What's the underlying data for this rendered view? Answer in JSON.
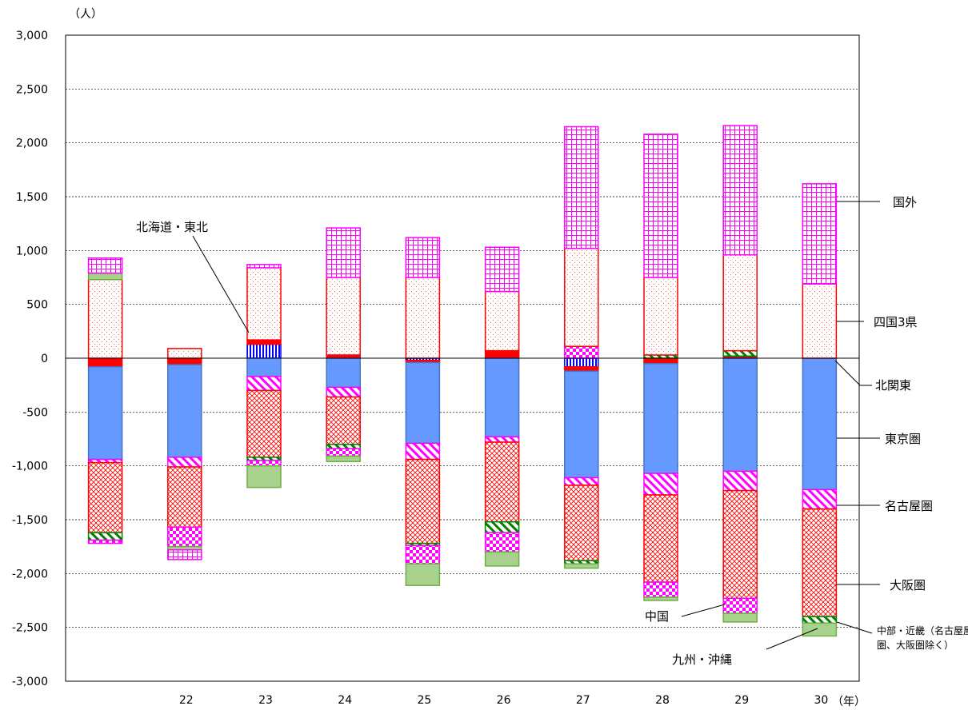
{
  "chart_data": {
    "type": "bar",
    "stacked": "diverging",
    "y_unit_label": "（人）",
    "x_unit_label": "（年）",
    "categories": [
      "",
      "22",
      "23",
      "24",
      "25",
      "26",
      "27",
      "28",
      "29",
      "30"
    ],
    "ylim": [
      -3000,
      3000
    ],
    "y_ticks": [
      3000,
      2500,
      2000,
      1500,
      1000,
      500,
      0,
      -500,
      -1000,
      -1500,
      -2000,
      -2500,
      -3000
    ],
    "y_tick_labels": [
      "3,000",
      "2,500",
      "2,000",
      "1,500",
      "1,000",
      "500",
      "0",
      "-500",
      "-1,000",
      "-1,500",
      "-2,000",
      "-2,500",
      "-3,000"
    ],
    "grid": "horizontal dashed",
    "stack_order": [
      "hokkaido_tohoku",
      "kita_kanto",
      "tokyo",
      "nagoya",
      "osaka",
      "chubu_kinki",
      "chugoku",
      "shikoku",
      "kyushu_okinawa",
      "kokugai"
    ],
    "series": [
      {
        "key": "hokkaido_tohoku",
        "name": "北海道・東北",
        "color": "#0000ff",
        "pattern": "vstripe",
        "values": [
          0,
          -10,
          130,
          0,
          -20,
          0,
          -80,
          0,
          0,
          0
        ]
      },
      {
        "key": "kita_kanto",
        "name": "北関東",
        "color": "#ff0000",
        "pattern": "solid",
        "values": [
          -80,
          -50,
          40,
          30,
          -20,
          70,
          -40,
          -50,
          20,
          0
        ]
      },
      {
        "key": "tokyo",
        "name": "東京圏",
        "color": "#6699ff",
        "pattern": "solid",
        "values": [
          -860,
          -860,
          -170,
          -270,
          -750,
          -730,
          -990,
          -1020,
          -1050,
          -1220
        ]
      },
      {
        "key": "nagoya",
        "name": "名古屋圏",
        "color": "#ff00ff",
        "pattern": "diag",
        "values": [
          -30,
          -90,
          -130,
          -90,
          -150,
          -50,
          -70,
          -200,
          -180,
          -180
        ]
      },
      {
        "key": "osaka",
        "name": "大阪圏",
        "color": "#ff0000",
        "pattern": "cross",
        "values": [
          -650,
          -560,
          -620,
          -440,
          -780,
          -740,
          -700,
          -810,
          -1000,
          -1000
        ]
      },
      {
        "key": "chubu_kinki",
        "name": "中部・近畿（名古屋圏、大阪圏除く）",
        "color": "#008000",
        "pattern": "diag",
        "values": [
          -70,
          0,
          -30,
          -40,
          -20,
          -100,
          -30,
          30,
          50,
          -60
        ]
      },
      {
        "key": "chugoku",
        "name": "中国",
        "color": "#ff00ff",
        "pattern": "checker",
        "values": [
          -30,
          -180,
          -50,
          -70,
          -170,
          -180,
          110,
          -140,
          -140,
          0
        ]
      },
      {
        "key": "shikoku",
        "name": "四国3県",
        "color": "#ff0000",
        "pattern": "dots",
        "values": [
          730,
          90,
          670,
          720,
          750,
          550,
          910,
          720,
          890,
          690
        ]
      },
      {
        "key": "kyushu_okinawa",
        "name": "九州・沖縄",
        "color": "#a9d18e",
        "pattern": "solid",
        "values": [
          60,
          -30,
          -200,
          -50,
          -200,
          -130,
          -40,
          -30,
          -80,
          -120
        ]
      },
      {
        "key": "kokugai",
        "name": "国外",
        "color": "#ff00ff",
        "pattern": "grid",
        "values": [
          140,
          -90,
          30,
          460,
          370,
          410,
          1130,
          1330,
          1200,
          930
        ]
      }
    ],
    "annotations": [
      {
        "text": "国外"
      },
      {
        "text": "四国3県"
      },
      {
        "text": "北関東"
      },
      {
        "text": "東京圏"
      },
      {
        "text": "名古屋圏"
      },
      {
        "text": "大阪圏"
      },
      {
        "text": "中国"
      },
      {
        "text": "北海道・東北"
      },
      {
        "text": "九州・沖縄"
      },
      {
        "text": "中部・近畿（名古屋屋"
      },
      {
        "text": "圏、大阪圏除く）"
      }
    ]
  }
}
